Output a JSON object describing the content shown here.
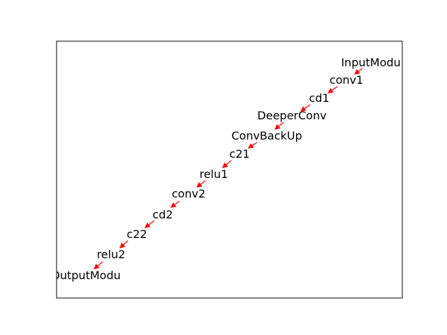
{
  "diagram": {
    "nodes": [
      {
        "id": "n0",
        "label": "InputModu"
      },
      {
        "id": "n1",
        "label": "conv1"
      },
      {
        "id": "n2",
        "label": "cd1"
      },
      {
        "id": "n3",
        "label": "DeeperConv"
      },
      {
        "id": "n4",
        "label": "ConvBackUp"
      },
      {
        "id": "n5",
        "label": "c21"
      },
      {
        "id": "n6",
        "label": "relu1"
      },
      {
        "id": "n7",
        "label": "conv2"
      },
      {
        "id": "n8",
        "label": "cd2"
      },
      {
        "id": "n9",
        "label": "c22"
      },
      {
        "id": "n10",
        "label": "relu2"
      },
      {
        "id": "n11",
        "label": "OutputModu"
      }
    ],
    "edges": [
      {
        "from": "n0",
        "to": "n1"
      },
      {
        "from": "n1",
        "to": "n2"
      },
      {
        "from": "n2",
        "to": "n3"
      },
      {
        "from": "n3",
        "to": "n4"
      },
      {
        "from": "n4",
        "to": "n5"
      },
      {
        "from": "n5",
        "to": "n6"
      },
      {
        "from": "n6",
        "to": "n7"
      },
      {
        "from": "n7",
        "to": "n8"
      },
      {
        "from": "n8",
        "to": "n9"
      },
      {
        "from": "n9",
        "to": "n10"
      },
      {
        "from": "n10",
        "to": "n11"
      }
    ],
    "colors": {
      "arrow": "#ff0000",
      "text": "#000000",
      "frame": "#000000",
      "background": "#ffffff"
    }
  }
}
